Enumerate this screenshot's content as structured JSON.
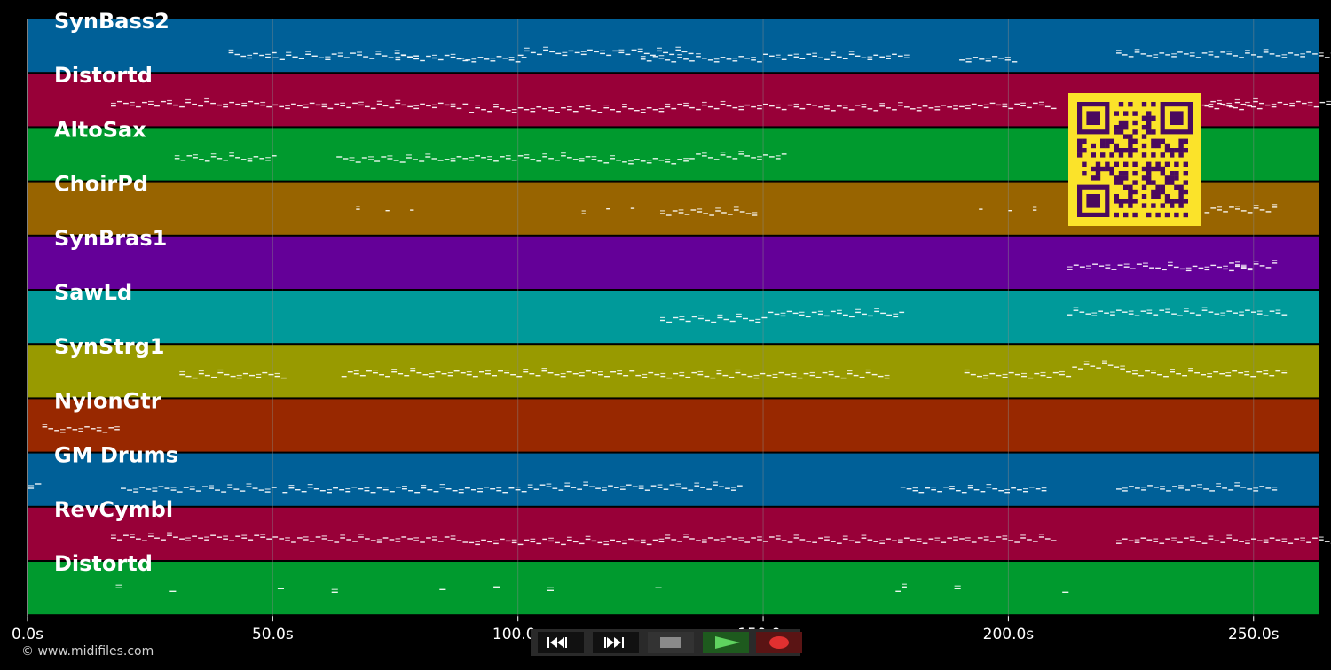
{
  "colors": {
    "background": "#000000",
    "grid": "#8a8a8a",
    "note": "#ffffff",
    "qr_bg": "#fbe32a",
    "qr_fg": "#4a0a5e"
  },
  "timeline": {
    "ticks": [
      {
        "seconds": 0,
        "label": "0.0s"
      },
      {
        "seconds": 50,
        "label": "50.0s"
      },
      {
        "seconds": 100,
        "label": "100.0s"
      },
      {
        "seconds": 150,
        "label": "150.0s"
      },
      {
        "seconds": 200,
        "label": "200.0s"
      },
      {
        "seconds": 250,
        "label": "250.0s"
      }
    ],
    "max_seconds": 264
  },
  "tracks": [
    {
      "name": "SynBass2",
      "color": "#006098",
      "notes": [
        [
          41,
          10,
          0.65
        ],
        [
          50,
          12,
          0.68
        ],
        [
          62,
          18,
          0.66
        ],
        [
          75,
          15,
          0.7
        ],
        [
          88,
          14,
          0.72
        ],
        [
          100,
          36,
          0.6
        ],
        [
          125,
          25,
          0.72
        ],
        [
          150,
          30,
          0.68
        ],
        [
          190,
          12,
          0.72
        ],
        [
          222,
          45,
          0.64
        ]
      ]
    },
    {
      "name": "Distortd",
      "color": "#980038",
      "notes": [
        [
          17,
          33,
          0.55
        ],
        [
          50,
          40,
          0.58
        ],
        [
          90,
          40,
          0.65
        ],
        [
          130,
          30,
          0.6
        ],
        [
          160,
          30,
          0.62
        ],
        [
          190,
          20,
          0.58
        ],
        [
          222,
          30,
          0.6
        ],
        [
          240,
          26,
          0.55
        ]
      ]
    },
    {
      "name": "AltoSax",
      "color": "#009a2e",
      "notes": [
        [
          30,
          21,
          0.55
        ],
        [
          63,
          22,
          0.57
        ],
        [
          85,
          30,
          0.55
        ],
        [
          115,
          20,
          0.6
        ],
        [
          135,
          20,
          0.52
        ]
      ]
    },
    {
      "name": "ChoirPd",
      "color": "#986400",
      "notes": [
        [
          67,
          1,
          0.52
        ],
        [
          73,
          1,
          0.48
        ],
        [
          78,
          1,
          0.52
        ],
        [
          113,
          1,
          0.52
        ],
        [
          118,
          1,
          0.48
        ],
        [
          123,
          1,
          0.52
        ],
        [
          129,
          20,
          0.55
        ],
        [
          194,
          1,
          0.52
        ],
        [
          200,
          1,
          0.48
        ],
        [
          205,
          1,
          0.52
        ],
        [
          240,
          15,
          0.5
        ]
      ]
    },
    {
      "name": "SynBras1",
      "color": "#640098",
      "notes": [
        [
          212,
          18,
          0.55
        ],
        [
          230,
          20,
          0.57
        ],
        [
          245,
          10,
          0.53
        ]
      ]
    },
    {
      "name": "SawLd",
      "color": "#009a9a",
      "notes": [
        [
          129,
          22,
          0.52
        ],
        [
          151,
          28,
          0.42
        ],
        [
          212,
          45,
          0.4
        ]
      ]
    },
    {
      "name": "SynStrg1",
      "color": "#989a00",
      "notes": [
        [
          31,
          22,
          0.55
        ],
        [
          64,
          60,
          0.52
        ],
        [
          124,
          52,
          0.55
        ],
        [
          191,
          22,
          0.55
        ],
        [
          213,
          11,
          0.38
        ],
        [
          224,
          33,
          0.52
        ]
      ]
    },
    {
      "name": "NylonGtr",
      "color": "#982800",
      "notes": [
        [
          3,
          16,
          0.55
        ]
      ]
    },
    {
      "name": "GM Drums",
      "color": "#006098",
      "notes": [
        [
          0,
          3,
          0.6
        ],
        [
          19,
          32,
          0.65
        ],
        [
          52,
          50,
          0.66
        ],
        [
          102,
          44,
          0.62
        ],
        [
          178,
          30,
          0.66
        ],
        [
          222,
          33,
          0.63
        ]
      ]
    },
    {
      "name": "RevCymbl",
      "color": "#980038",
      "notes": [
        [
          17,
          33,
          0.55
        ],
        [
          50,
          40,
          0.58
        ],
        [
          90,
          40,
          0.62
        ],
        [
          130,
          30,
          0.58
        ],
        [
          160,
          30,
          0.6
        ],
        [
          190,
          20,
          0.58
        ],
        [
          222,
          45,
          0.6
        ]
      ]
    },
    {
      "name": "Distortd",
      "color": "#009a2e",
      "notes": [
        [
          18,
          1.5,
          0.5
        ],
        [
          29,
          1.5,
          0.5
        ],
        [
          51,
          1.5,
          0.5
        ],
        [
          62,
          1.5,
          0.5
        ],
        [
          84,
          1.5,
          0.5
        ],
        [
          95,
          1.5,
          0.5
        ],
        [
          106,
          1.5,
          0.5
        ],
        [
          128,
          1.5,
          0.5
        ],
        [
          177,
          2.5,
          0.5
        ],
        [
          189,
          1.5,
          0.5
        ],
        [
          211,
          1.5,
          0.5
        ]
      ]
    }
  ],
  "footer": {
    "copyright": "© www.midifiles.com"
  },
  "transport": {
    "buttons": [
      {
        "name": "rewind-button",
        "icon": "rewind-icon"
      },
      {
        "name": "fast-forward-button",
        "icon": "fast-forward-icon"
      },
      {
        "name": "stop-button",
        "icon": "stop-icon"
      },
      {
        "name": "play-button",
        "icon": "play-icon"
      },
      {
        "name": "record-button",
        "icon": "record-icon"
      }
    ]
  },
  "overlay": {
    "qr_code": "qr-code-icon"
  }
}
